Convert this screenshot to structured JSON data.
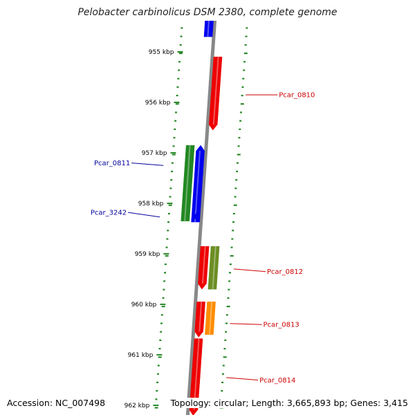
{
  "title": "Pelobacter carbinolicus DSM 2380, complete genome",
  "accession": "Accession: NC_007498",
  "topology": "Topology: circular; Length: 3,665,893 bp; Genes: 3,415",
  "colors": {
    "backbone": "#888888",
    "tick": "#2a8a2a",
    "forward_label": "#cc0000",
    "reverse_label": "#000099"
  },
  "ticks": [
    {
      "label": "955 kbp",
      "kbp": 955
    },
    {
      "label": "956 kbp",
      "kbp": 956
    },
    {
      "label": "957 kbp",
      "kbp": 957
    },
    {
      "label": "958 kbp",
      "kbp": 958
    },
    {
      "label": "959 kbp",
      "kbp": 959
    },
    {
      "label": "960 kbp",
      "kbp": 960
    },
    {
      "label": "961 kbp",
      "kbp": 961
    },
    {
      "label": "962 kbp",
      "kbp": 962
    }
  ],
  "genes": [
    {
      "name": "",
      "strand": "reverse",
      "lane": 1,
      "start": 954.35,
      "end": 954.7,
      "color": "#0000ee",
      "arrow": "none"
    },
    {
      "name": "",
      "strand": "forward",
      "lane": 1,
      "start": 955.1,
      "end": 956.55,
      "color": "#ee0000",
      "arrow": "down"
    },
    {
      "name": "",
      "strand": "reverse",
      "lane": 2,
      "start": 956.85,
      "end": 958.35,
      "color": "#228822",
      "arrow": "none"
    },
    {
      "name": "",
      "strand": "reverse",
      "lane": 1,
      "start": 956.85,
      "end": 958.35,
      "color": "#0000ee",
      "arrow": "up"
    },
    {
      "name": "",
      "strand": "reverse",
      "lane": 1,
      "start": 958.2,
      "end": 958.37,
      "color": "#0000ee",
      "arrow": "up"
    },
    {
      "name": "",
      "strand": "forward",
      "lane": 1,
      "start": 958.85,
      "end": 959.7,
      "color": "#ee0000",
      "arrow": "down"
    },
    {
      "name": "",
      "strand": "forward",
      "lane": 2,
      "start": 958.85,
      "end": 959.7,
      "color": "#6b8e23",
      "arrow": "none"
    },
    {
      "name": "",
      "strand": "forward",
      "lane": 1,
      "start": 959.95,
      "end": 960.65,
      "color": "#ee0000",
      "arrow": "down"
    },
    {
      "name": "",
      "strand": "forward",
      "lane": 2,
      "start": 959.95,
      "end": 960.6,
      "color": "#ff8c00",
      "arrow": "none"
    },
    {
      "name": "",
      "strand": "forward",
      "lane": 1,
      "start": 960.68,
      "end": 962.2,
      "color": "#ee0000",
      "arrow": "down"
    }
  ],
  "labels": [
    {
      "text": "Pcar_0810",
      "strand": "forward",
      "label_at": 955.85,
      "point_at": 955.85
    },
    {
      "text": "Pcar_0811",
      "strand": "reverse",
      "label_at": 957.2,
      "point_at": 957.25
    },
    {
      "text": "Pcar_3242",
      "strand": "reverse",
      "label_at": 958.18,
      "point_at": 958.27
    },
    {
      "text": "Pcar_0812",
      "strand": "forward",
      "label_at": 959.35,
      "point_at": 959.3
    },
    {
      "text": "Pcar_0813",
      "strand": "forward",
      "label_at": 960.4,
      "point_at": 960.38
    },
    {
      "text": "Pcar_0814",
      "strand": "forward",
      "label_at": 961.5,
      "point_at": 961.45
    }
  ]
}
